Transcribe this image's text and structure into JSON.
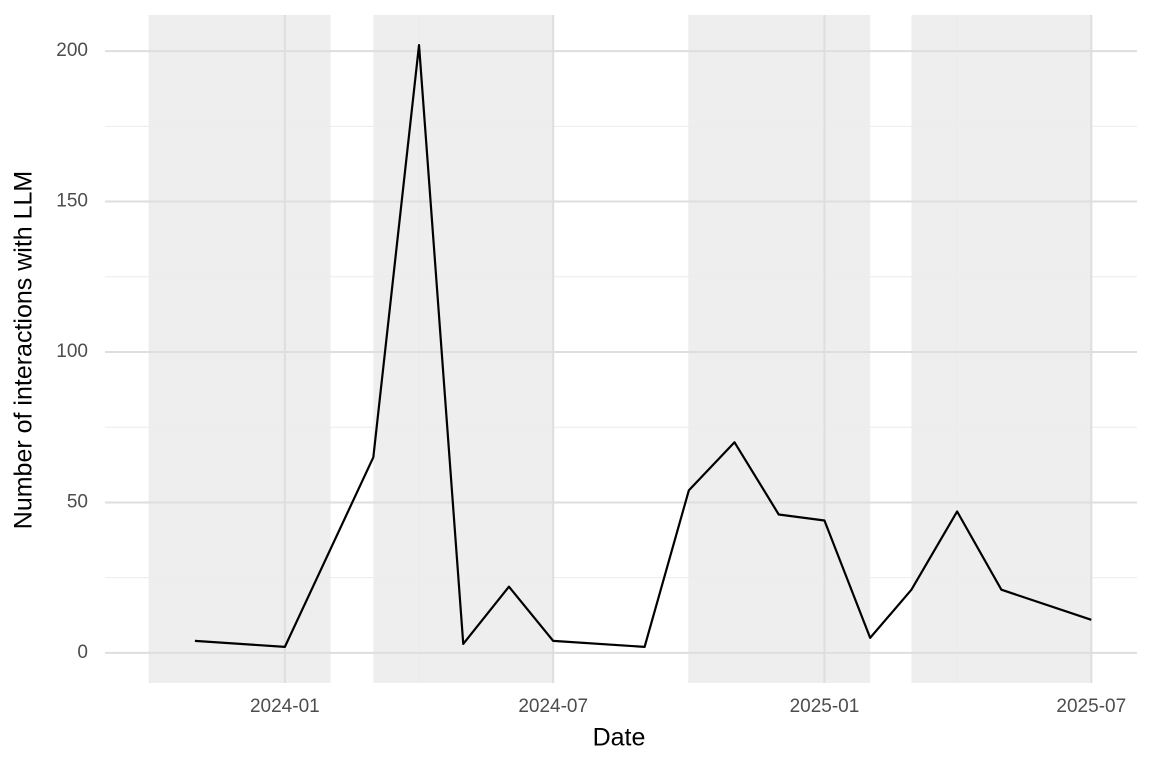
{
  "chart_data": {
    "type": "line",
    "x_label": "Date",
    "y_label": "Number of interactions with LLM",
    "x": [
      "2023-11",
      "2024-01",
      "2024-03",
      "2024-04",
      "2024-05",
      "2024-06",
      "2024-07",
      "2024-09",
      "2024-10",
      "2024-11",
      "2024-12",
      "2025-01",
      "2025-02",
      "2025-03",
      "2025-04",
      "2025-05",
      "2025-07"
    ],
    "values": [
      4,
      2,
      65,
      202,
      3,
      22,
      4,
      2,
      54,
      70,
      46,
      44,
      5,
      21,
      47,
      21,
      11
    ],
    "color": "#000000",
    "xlim": [
      "2023-09",
      "2025-08"
    ],
    "xticks": [
      "2024-01",
      "2024-07",
      "2025-01",
      "2025-07"
    ],
    "x_minor_ticks": [
      "2023-10",
      "2024-04",
      "2024-10",
      "2025-04"
    ],
    "ylim": [
      -10,
      212
    ],
    "yticks": [
      0,
      50,
      100,
      150,
      200
    ],
    "y_minor_ticks": [
      25,
      75,
      125,
      175
    ],
    "grid": true,
    "shaded_periods": [
      [
        "2023-10",
        "2024-02"
      ],
      [
        "2024-03",
        "2024-07"
      ],
      [
        "2024-10",
        "2025-02"
      ],
      [
        "2025-03",
        "2025-07"
      ]
    ],
    "shade_color": "#eeeeee"
  }
}
